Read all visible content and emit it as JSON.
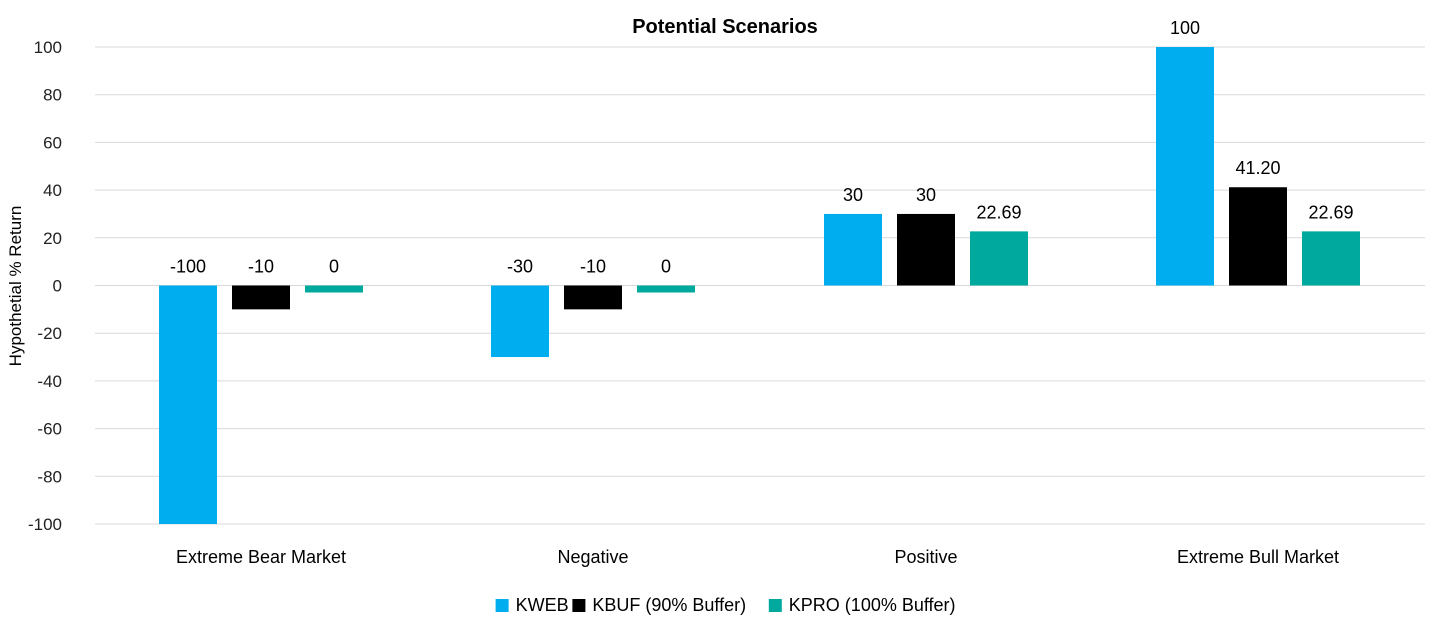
{
  "chart_data": {
    "type": "bar",
    "title": "Potential Scenarios",
    "xlabel": "",
    "ylabel": "Hypothetial % Return",
    "ylim": [
      -100,
      100
    ],
    "yticks": [
      100,
      80,
      60,
      40,
      20,
      0,
      -20,
      -40,
      -60,
      -80,
      -100
    ],
    "grid": true,
    "legend_position": "bottom",
    "categories": [
      "Extreme Bear Market",
      "Negative",
      "Positive",
      "Extreme Bull Market"
    ],
    "series": [
      {
        "name": "KWEB",
        "color": "#00AEEF",
        "values": [
          -100,
          -30,
          30,
          100
        ],
        "labels": [
          "-100",
          "-30",
          "30",
          "100"
        ]
      },
      {
        "name": "KBUF (90% Buffer)",
        "color": "#000000",
        "values": [
          -10,
          -10,
          30,
          41.2
        ],
        "labels": [
          "-10",
          "-10",
          "30",
          "41.20"
        ]
      },
      {
        "name": "KPRO (100% Buffer)",
        "color": "#00A99D",
        "values": [
          0,
          0,
          22.69,
          22.69
        ],
        "labels": [
          "0",
          "0",
          "22.69",
          "22.69"
        ]
      }
    ]
  }
}
